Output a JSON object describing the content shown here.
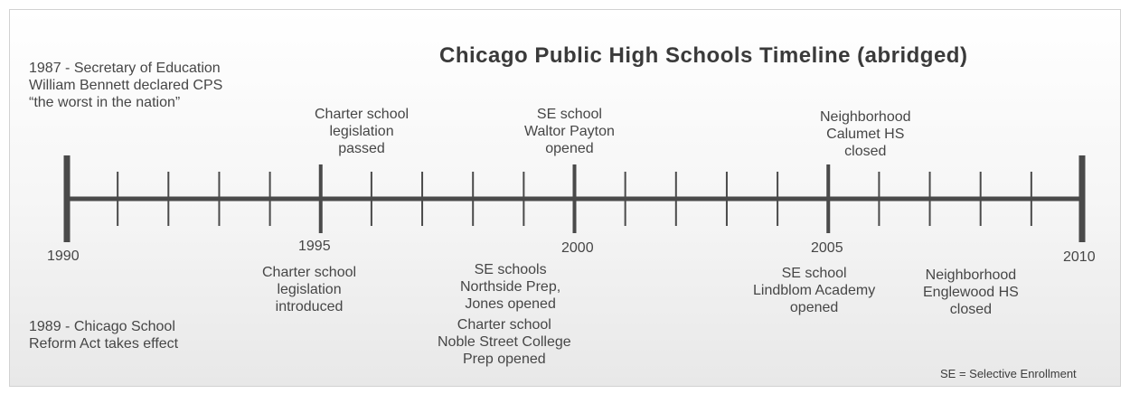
{
  "title": "Chicago Public High Schools Timeline (abridged)",
  "timeline": {
    "start_year": 1990,
    "end_year": 2010,
    "year_labels": [
      "1990",
      "1995",
      "2000",
      "2005",
      "2010"
    ]
  },
  "events": {
    "e1987": "1987 - Secretary of Education\nWilliam Bennett declared CPS\n“the worst in the nation”",
    "e1989": "1989 - Chicago School\nReform Act takes effect",
    "charter_passed": "Charter school\nlegislation\npassed",
    "charter_introduced": "Charter school\nlegislation\nintroduced",
    "se_payton": "SE school\nWaltor Payton\nopened",
    "se_northside_jones": "SE schools\nNorthside Prep,\nJones opened",
    "charter_noble": "Charter school\nNoble Street College\nPrep opened",
    "calumet_closed": "Neighborhood\nCalumet HS\nclosed",
    "se_lindblom": "SE school\nLindblom Academy\nopened",
    "englewood_closed": "Neighborhood\nEnglewood HS\nclosed"
  },
  "footnote": "SE = Selective Enrollment",
  "colors": {
    "axis": "#4a4a4a",
    "text": "#464646"
  }
}
